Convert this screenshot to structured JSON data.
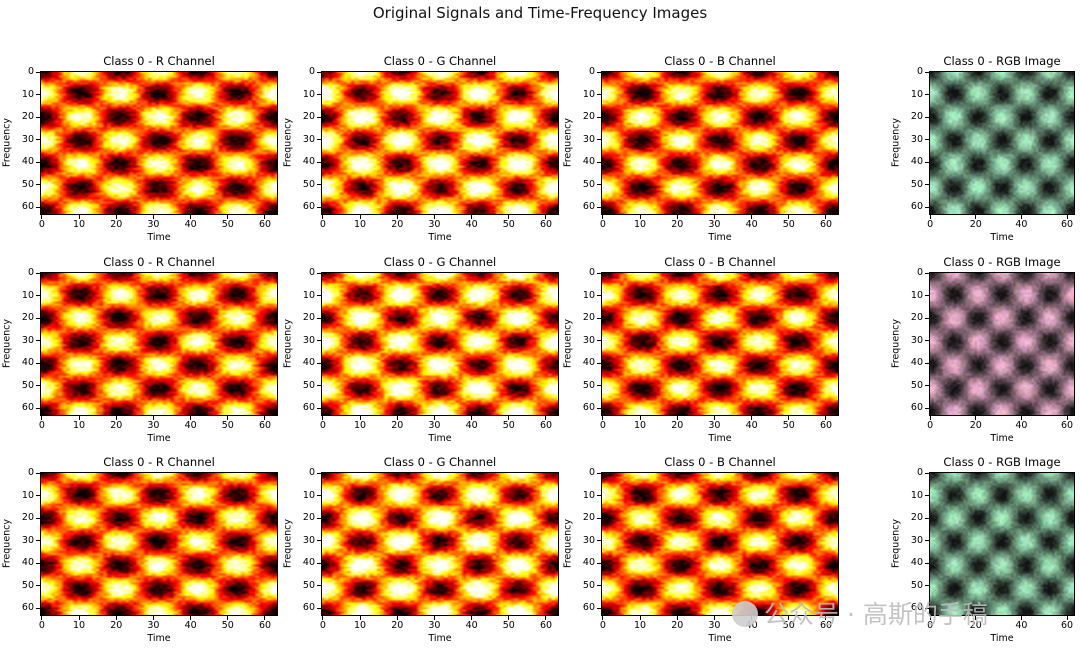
{
  "figure": {
    "suptitle": "Original Signals and Time-Frequency Images"
  },
  "chart_data": [
    {
      "type": "heatmap",
      "title": "Class 0 - R Channel",
      "xlabel": "Time",
      "ylabel": "Frequency",
      "colormap": "hot",
      "xlim": [
        0,
        63
      ],
      "ylim": [
        63,
        0
      ],
      "xticks": [
        0,
        10,
        20,
        30,
        40,
        50,
        60
      ],
      "yticks": [
        0,
        10,
        20,
        30,
        40,
        50,
        60
      ]
    },
    {
      "type": "heatmap",
      "title": "Class 0 - G Channel",
      "xlabel": "Time",
      "ylabel": "Frequency",
      "colormap": "hot",
      "xlim": [
        0,
        63
      ],
      "ylim": [
        63,
        0
      ],
      "xticks": [
        0,
        10,
        20,
        30,
        40,
        50,
        60
      ],
      "yticks": [
        0,
        10,
        20,
        30,
        40,
        50,
        60
      ]
    },
    {
      "type": "heatmap",
      "title": "Class 0 - B Channel",
      "xlabel": "Time",
      "ylabel": "Frequency",
      "colormap": "hot",
      "xlim": [
        0,
        63
      ],
      "ylim": [
        63,
        0
      ],
      "xticks": [
        0,
        10,
        20,
        30,
        40,
        50,
        60
      ],
      "yticks": [
        0,
        10,
        20,
        30,
        40,
        50,
        60
      ]
    },
    {
      "type": "heatmap",
      "title": "Class 0 - RGB Image",
      "xlabel": "Time",
      "ylabel": "Frequency",
      "colormap": "rgb",
      "tint": "#a8f0c4",
      "xlim": [
        0,
        63
      ],
      "ylim": [
        63,
        0
      ],
      "xticks": [
        0,
        20,
        40,
        60
      ],
      "yticks": [
        0,
        10,
        20,
        30,
        40,
        50,
        60
      ]
    },
    {
      "type": "heatmap",
      "title": "Class 0 - R Channel",
      "xlabel": "Time",
      "ylabel": "Frequency",
      "colormap": "hot",
      "xlim": [
        0,
        63
      ],
      "ylim": [
        63,
        0
      ],
      "xticks": [
        0,
        10,
        20,
        30,
        40,
        50,
        60
      ],
      "yticks": [
        0,
        10,
        20,
        30,
        40,
        50,
        60
      ]
    },
    {
      "type": "heatmap",
      "title": "Class 0 - G Channel",
      "xlabel": "Time",
      "ylabel": "Frequency",
      "colormap": "hot",
      "xlim": [
        0,
        63
      ],
      "ylim": [
        63,
        0
      ],
      "xticks": [
        0,
        10,
        20,
        30,
        40,
        50,
        60
      ],
      "yticks": [
        0,
        10,
        20,
        30,
        40,
        50,
        60
      ]
    },
    {
      "type": "heatmap",
      "title": "Class 0 - B Channel",
      "xlabel": "Time",
      "ylabel": "Frequency",
      "colormap": "hot",
      "xlim": [
        0,
        63
      ],
      "ylim": [
        63,
        0
      ],
      "xticks": [
        0,
        10,
        20,
        30,
        40,
        50,
        60
      ],
      "yticks": [
        0,
        10,
        20,
        30,
        40,
        50,
        60
      ]
    },
    {
      "type": "heatmap",
      "title": "Class 0 - RGB Image",
      "xlabel": "Time",
      "ylabel": "Frequency",
      "colormap": "rgb",
      "tint": "#f2b4d2",
      "xlim": [
        0,
        63
      ],
      "ylim": [
        63,
        0
      ],
      "xticks": [
        0,
        20,
        40,
        60
      ],
      "yticks": [
        0,
        10,
        20,
        30,
        40,
        50,
        60
      ]
    },
    {
      "type": "heatmap",
      "title": "Class 0 - R Channel",
      "xlabel": "Time",
      "ylabel": "Frequency",
      "colormap": "hot",
      "xlim": [
        0,
        63
      ],
      "ylim": [
        63,
        0
      ],
      "xticks": [
        0,
        10,
        20,
        30,
        40,
        50,
        60
      ],
      "yticks": [
        0,
        10,
        20,
        30,
        40,
        50,
        60
      ]
    },
    {
      "type": "heatmap",
      "title": "Class 0 - G Channel",
      "xlabel": "Time",
      "ylabel": "Frequency",
      "colormap": "hot",
      "xlim": [
        0,
        63
      ],
      "ylim": [
        63,
        0
      ],
      "xticks": [
        0,
        10,
        20,
        30,
        40,
        50,
        60
      ],
      "yticks": [
        0,
        10,
        20,
        30,
        40,
        50,
        60
      ]
    },
    {
      "type": "heatmap",
      "title": "Class 0 - B Channel",
      "xlabel": "Time",
      "ylabel": "Frequency",
      "colormap": "hot",
      "xlim": [
        0,
        63
      ],
      "ylim": [
        63,
        0
      ],
      "xticks": [
        0,
        10,
        20,
        30,
        40,
        50,
        60
      ],
      "yticks": [
        0,
        10,
        20,
        30,
        40,
        50,
        60
      ]
    },
    {
      "type": "heatmap",
      "title": "Class 0 - RGB Image",
      "xlabel": "Time",
      "ylabel": "Frequency",
      "colormap": "rgb",
      "tint": "#a6eec0",
      "xlim": [
        0,
        63
      ],
      "ylim": [
        63,
        0
      ],
      "xticks": [
        0,
        20,
        40,
        60
      ],
      "yticks": [
        0,
        10,
        20,
        30,
        40,
        50,
        60
      ]
    }
  ],
  "watermark": {
    "text": "公众号 · 高斯的手稿"
  }
}
